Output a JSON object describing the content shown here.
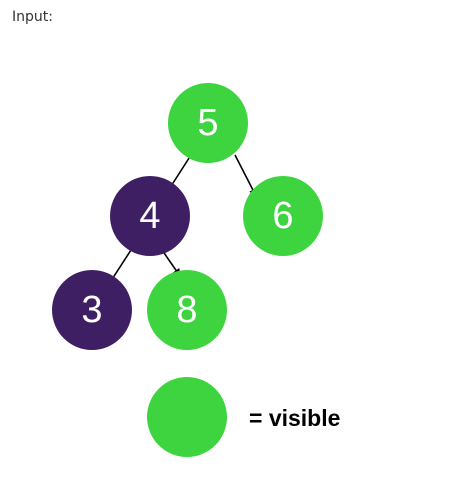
{
  "header": {
    "label": "Input:"
  },
  "colors": {
    "visible": "#3dd43f",
    "hidden": "#3f1f63",
    "edge": "#000000"
  },
  "tree": {
    "nodes": [
      {
        "id": "n5",
        "value": "5",
        "state": "visible"
      },
      {
        "id": "n4",
        "value": "4",
        "state": "hidden"
      },
      {
        "id": "n6",
        "value": "6",
        "state": "visible"
      },
      {
        "id": "n3",
        "value": "3",
        "state": "hidden"
      },
      {
        "id": "n8",
        "value": "8",
        "state": "visible"
      }
    ],
    "edges": [
      {
        "from": "n5",
        "to": "n4"
      },
      {
        "from": "n5",
        "to": "n6"
      },
      {
        "from": "n4",
        "to": "n3"
      },
      {
        "from": "n4",
        "to": "n8"
      }
    ]
  },
  "legend": {
    "swatch_state": "visible",
    "label": "= visible"
  }
}
